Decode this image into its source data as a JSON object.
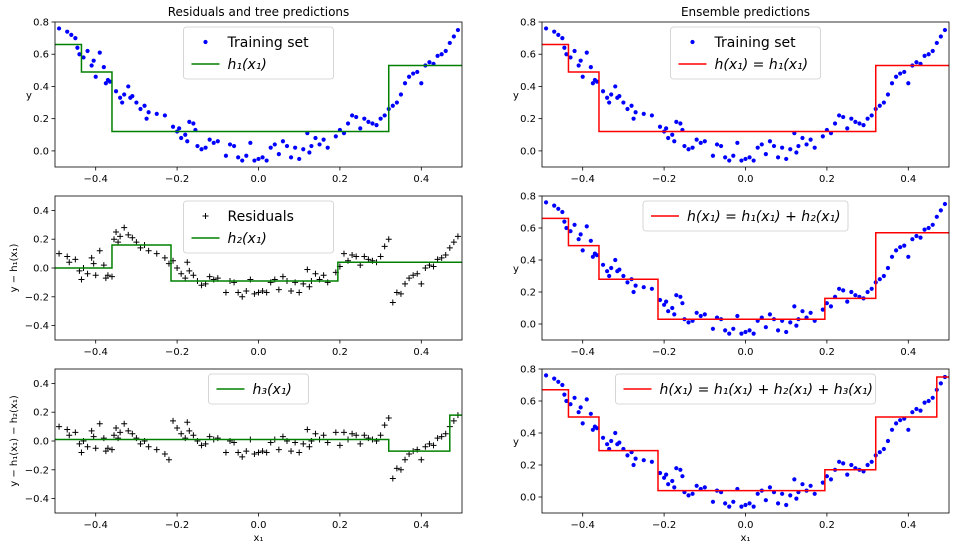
{
  "colors": {
    "train": "#0000ff",
    "tree": "#008000",
    "ensemble": "#ff0000",
    "residual": "#000000"
  },
  "chart_data": [
    {
      "id": "p1",
      "type": "scatter+step",
      "title": "Residuals and tree predictions",
      "xlabel": "",
      "ylabel": "y",
      "xlim": [
        -0.5,
        0.5
      ],
      "ylim": [
        -0.1,
        0.8
      ],
      "xticks": [
        -0.4,
        -0.2,
        0.0,
        0.2,
        0.4
      ],
      "yticks": [
        0.0,
        0.2,
        0.4,
        0.6,
        0.8
      ],
      "points_series": "training",
      "step": {
        "name": "h1",
        "thresholds": [
          -0.435,
          -0.36,
          0.32
        ],
        "values": [
          0.66,
          0.49,
          0.12,
          0.53
        ]
      },
      "line_color": "tree",
      "legend": [
        "Training set",
        "h₁(x₁)"
      ],
      "legend_loc": "upper center"
    },
    {
      "id": "p2",
      "type": "scatter+step",
      "title": "Ensemble predictions",
      "xlabel": "",
      "ylabel": "y",
      "xlim": [
        -0.5,
        0.5
      ],
      "ylim": [
        -0.1,
        0.8
      ],
      "xticks": [
        -0.4,
        -0.2,
        0.0,
        0.2,
        0.4
      ],
      "yticks": [
        0.0,
        0.2,
        0.4,
        0.6,
        0.8
      ],
      "points_series": "training",
      "step": {
        "name": "h(x1)=h1(x1)",
        "thresholds": [
          -0.435,
          -0.36,
          0.32
        ],
        "values": [
          0.66,
          0.49,
          0.12,
          0.53
        ]
      },
      "line_color": "ensemble",
      "legend": [
        "Training set",
        "h(x₁) = h₁(x₁)"
      ],
      "legend_loc": "upper center"
    },
    {
      "id": "p3",
      "type": "scatter+step",
      "title": "",
      "xlabel": "",
      "ylabel": "y − h₁(x₁)",
      "xlim": [
        -0.5,
        0.5
      ],
      "ylim": [
        -0.5,
        0.5
      ],
      "xticks": [
        -0.4,
        -0.2,
        0.0,
        0.2,
        0.4
      ],
      "yticks": [
        -0.4,
        -0.2,
        0.0,
        0.2,
        0.4
      ],
      "points_series": "residuals1",
      "step": {
        "name": "h2",
        "thresholds": [
          -0.36,
          -0.215,
          0.195
        ],
        "values": [
          0.0,
          0.16,
          -0.09,
          0.04
        ]
      },
      "line_color": "tree",
      "legend": [
        "Residuals",
        "h₂(x₁)"
      ],
      "legend_loc": "upper center"
    },
    {
      "id": "p4",
      "type": "scatter+step",
      "title": "",
      "xlabel": "",
      "ylabel": "y",
      "xlim": [
        -0.5,
        0.5
      ],
      "ylim": [
        -0.1,
        0.8
      ],
      "xticks": [
        -0.4,
        -0.2,
        0.0,
        0.2,
        0.4
      ],
      "yticks": [
        0.0,
        0.2,
        0.4,
        0.6,
        0.8
      ],
      "points_series": "training",
      "step": {
        "name": "h(x1)=h1(x1)+h2(x1)",
        "thresholds": [
          -0.435,
          -0.36,
          -0.215,
          0.195,
          0.32
        ],
        "values": [
          0.66,
          0.49,
          0.28,
          0.03,
          0.16,
          0.57
        ]
      },
      "line_color": "ensemble",
      "legend": [
        "h(x₁) = h₁(x₁) + h₂(x₁)"
      ],
      "legend_loc": "upper center"
    },
    {
      "id": "p5",
      "type": "scatter+step",
      "title": "",
      "xlabel": "x₁",
      "ylabel": "y − h₁(x₁) − h₂(x₁)",
      "xlim": [
        -0.5,
        0.5
      ],
      "ylim": [
        -0.5,
        0.5
      ],
      "xticks": [
        -0.4,
        -0.2,
        0.0,
        0.2,
        0.4
      ],
      "yticks": [
        -0.4,
        -0.2,
        0.0,
        0.2,
        0.4
      ],
      "points_series": "residuals2",
      "step": {
        "name": "h3",
        "thresholds": [
          0.32,
          0.47
        ],
        "values": [
          0.01,
          -0.07,
          0.18
        ]
      },
      "line_color": "tree",
      "legend": [
        "h₃(x₁)"
      ],
      "legend_loc": "upper center"
    },
    {
      "id": "p6",
      "type": "scatter+step",
      "title": "",
      "xlabel": "x₁",
      "ylabel": "y",
      "xlim": [
        -0.5,
        0.5
      ],
      "ylim": [
        -0.1,
        0.8
      ],
      "xticks": [
        -0.4,
        -0.2,
        0.0,
        0.2,
        0.4
      ],
      "yticks": [
        0.0,
        0.2,
        0.4,
        0.6,
        0.8
      ],
      "points_series": "training",
      "step": {
        "name": "h(x1)=h1(x1)+h2(x1)+h3(x1)",
        "thresholds": [
          -0.435,
          -0.36,
          -0.215,
          0.195,
          0.32,
          0.47
        ],
        "values": [
          0.67,
          0.5,
          0.29,
          0.04,
          0.17,
          0.5,
          0.75
        ]
      },
      "line_color": "ensemble",
      "legend": [
        "h(x₁) = h₁(x₁) + h₂(x₁) + h₃(x₁)"
      ],
      "legend_loc": "upper center"
    }
  ],
  "scatter": {
    "training": [
      [
        -0.49,
        0.76
      ],
      [
        -0.47,
        0.74
      ],
      [
        -0.46,
        0.72
      ],
      [
        -0.45,
        0.7
      ],
      [
        -0.445,
        0.64
      ],
      [
        -0.44,
        0.6
      ],
      [
        -0.43,
        0.58
      ],
      [
        -0.42,
        0.62
      ],
      [
        -0.41,
        0.53
      ],
      [
        -0.405,
        0.56
      ],
      [
        -0.4,
        0.46
      ],
      [
        -0.39,
        0.61
      ],
      [
        -0.38,
        0.52
      ],
      [
        -0.375,
        0.42
      ],
      [
        -0.37,
        0.44
      ],
      [
        -0.365,
        0.43
      ],
      [
        -0.35,
        0.37
      ],
      [
        -0.34,
        0.33
      ],
      [
        -0.335,
        0.3
      ],
      [
        -0.33,
        0.35
      ],
      [
        -0.32,
        0.4
      ],
      [
        -0.315,
        0.33
      ],
      [
        -0.31,
        0.34
      ],
      [
        -0.3,
        0.3
      ],
      [
        -0.29,
        0.26
      ],
      [
        -0.28,
        0.28
      ],
      [
        -0.275,
        0.2
      ],
      [
        -0.27,
        0.24
      ],
      [
        -0.25,
        0.23
      ],
      [
        -0.23,
        0.22
      ],
      [
        -0.21,
        0.15
      ],
      [
        -0.2,
        0.12
      ],
      [
        -0.195,
        0.14
      ],
      [
        -0.19,
        0.08
      ],
      [
        -0.18,
        0.1
      ],
      [
        -0.175,
        0.06
      ],
      [
        -0.17,
        0.18
      ],
      [
        -0.16,
        0.17
      ],
      [
        -0.155,
        0.13
      ],
      [
        -0.15,
        0.03
      ],
      [
        -0.14,
        0.01
      ],
      [
        -0.13,
        0.02
      ],
      [
        -0.12,
        0.07
      ],
      [
        -0.11,
        0.05
      ],
      [
        -0.1,
        0.06
      ],
      [
        -0.08,
        -0.03
      ],
      [
        -0.07,
        0.04
      ],
      [
        -0.06,
        0.03
      ],
      [
        -0.05,
        -0.04
      ],
      [
        -0.04,
        -0.06
      ],
      [
        -0.03,
        -0.03
      ],
      [
        -0.02,
        0.05
      ],
      [
        -0.01,
        -0.06
      ],
      [
        0.0,
        -0.05
      ],
      [
        0.01,
        -0.04
      ],
      [
        0.02,
        -0.06
      ],
      [
        0.03,
        0.02
      ],
      [
        0.04,
        0.04
      ],
      [
        0.05,
        -0.02
      ],
      [
        0.06,
        0.06
      ],
      [
        0.07,
        0.03
      ],
      [
        0.08,
        -0.04
      ],
      [
        0.09,
        0.02
      ],
      [
        0.1,
        -0.05
      ],
      [
        0.11,
        0.01
      ],
      [
        0.12,
        0.11
      ],
      [
        0.125,
        -0.01
      ],
      [
        0.13,
        0.03
      ],
      [
        0.14,
        0.08
      ],
      [
        0.15,
        0.04
      ],
      [
        0.16,
        0.07
      ],
      [
        0.17,
        0.02
      ],
      [
        0.19,
        0.09
      ],
      [
        0.2,
        0.13
      ],
      [
        0.21,
        0.11
      ],
      [
        0.22,
        0.17
      ],
      [
        0.23,
        0.22
      ],
      [
        0.24,
        0.21
      ],
      [
        0.25,
        0.14
      ],
      [
        0.26,
        0.2
      ],
      [
        0.27,
        0.18
      ],
      [
        0.28,
        0.17
      ],
      [
        0.29,
        0.16
      ],
      [
        0.3,
        0.2
      ],
      [
        0.31,
        0.22
      ],
      [
        0.32,
        0.26
      ],
      [
        0.33,
        0.28
      ],
      [
        0.34,
        0.3
      ],
      [
        0.35,
        0.35
      ],
      [
        0.36,
        0.42
      ],
      [
        0.37,
        0.46
      ],
      [
        0.38,
        0.48
      ],
      [
        0.39,
        0.49
      ],
      [
        0.4,
        0.42
      ],
      [
        0.41,
        0.53
      ],
      [
        0.42,
        0.55
      ],
      [
        0.43,
        0.54
      ],
      [
        0.44,
        0.59
      ],
      [
        0.45,
        0.6
      ],
      [
        0.46,
        0.62
      ],
      [
        0.47,
        0.67
      ],
      [
        0.48,
        0.71
      ],
      [
        0.49,
        0.75
      ]
    ],
    "residuals1": [
      [
        -0.49,
        0.1
      ],
      [
        -0.47,
        0.08
      ],
      [
        -0.465,
        0.04
      ],
      [
        -0.45,
        0.06
      ],
      [
        -0.44,
        -0.02
      ],
      [
        -0.435,
        -0.08
      ],
      [
        -0.43,
        0.0
      ],
      [
        -0.42,
        -0.04
      ],
      [
        -0.41,
        0.07
      ],
      [
        -0.405,
        0.03
      ],
      [
        -0.4,
        -0.05
      ],
      [
        -0.39,
        0.12
      ],
      [
        -0.38,
        0.02
      ],
      [
        -0.375,
        -0.07
      ],
      [
        -0.37,
        -0.05
      ],
      [
        -0.36,
        -0.06
      ],
      [
        -0.355,
        0.2
      ],
      [
        -0.35,
        0.25
      ],
      [
        -0.345,
        0.18
      ],
      [
        -0.34,
        0.22
      ],
      [
        -0.33,
        0.28
      ],
      [
        -0.32,
        0.23
      ],
      [
        -0.31,
        0.21
      ],
      [
        -0.3,
        0.18
      ],
      [
        -0.29,
        0.14
      ],
      [
        -0.28,
        0.16
      ],
      [
        -0.27,
        0.12
      ],
      [
        -0.25,
        0.1
      ],
      [
        -0.23,
        0.07
      ],
      [
        -0.22,
        0.03
      ],
      [
        -0.21,
        0.05
      ],
      [
        -0.2,
        0.0
      ],
      [
        -0.19,
        -0.04
      ],
      [
        -0.18,
        -0.07
      ],
      [
        -0.175,
        0.04
      ],
      [
        -0.17,
        -0.02
      ],
      [
        -0.16,
        -0.05
      ],
      [
        -0.15,
        -0.09
      ],
      [
        -0.14,
        -0.12
      ],
      [
        -0.13,
        -0.11
      ],
      [
        -0.12,
        -0.06
      ],
      [
        -0.11,
        -0.08
      ],
      [
        -0.1,
        -0.07
      ],
      [
        -0.08,
        -0.17
      ],
      [
        -0.07,
        -0.09
      ],
      [
        -0.06,
        -0.1
      ],
      [
        -0.05,
        -0.17
      ],
      [
        -0.04,
        -0.2
      ],
      [
        -0.03,
        -0.16
      ],
      [
        -0.02,
        -0.08
      ],
      [
        -0.01,
        -0.18
      ],
      [
        0.0,
        -0.17
      ],
      [
        0.01,
        -0.16
      ],
      [
        0.02,
        -0.17
      ],
      [
        0.03,
        -0.1
      ],
      [
        0.04,
        -0.08
      ],
      [
        0.05,
        -0.15
      ],
      [
        0.06,
        -0.06
      ],
      [
        0.07,
        -0.09
      ],
      [
        0.08,
        -0.16
      ],
      [
        0.09,
        -0.1
      ],
      [
        0.1,
        -0.17
      ],
      [
        0.11,
        -0.11
      ],
      [
        0.12,
        -0.01
      ],
      [
        0.125,
        -0.13
      ],
      [
        0.13,
        -0.09
      ],
      [
        0.14,
        -0.04
      ],
      [
        0.15,
        -0.08
      ],
      [
        0.16,
        -0.05
      ],
      [
        0.17,
        -0.1
      ],
      [
        0.19,
        -0.03
      ],
      [
        0.2,
        0.01
      ],
      [
        0.21,
        0.1
      ],
      [
        0.22,
        0.05
      ],
      [
        0.23,
        0.09
      ],
      [
        0.24,
        0.08
      ],
      [
        0.25,
        0.02
      ],
      [
        0.26,
        0.08
      ],
      [
        0.27,
        0.06
      ],
      [
        0.28,
        0.05
      ],
      [
        0.29,
        0.04
      ],
      [
        0.3,
        0.08
      ],
      [
        0.31,
        0.15
      ],
      [
        0.32,
        0.2
      ],
      [
        0.33,
        -0.24
      ],
      [
        0.34,
        -0.17
      ],
      [
        0.35,
        -0.18
      ],
      [
        0.36,
        -0.11
      ],
      [
        0.37,
        -0.07
      ],
      [
        0.38,
        -0.05
      ],
      [
        0.39,
        -0.04
      ],
      [
        0.4,
        -0.11
      ],
      [
        0.41,
        0.0
      ],
      [
        0.42,
        0.02
      ],
      [
        0.43,
        0.01
      ],
      [
        0.44,
        0.06
      ],
      [
        0.45,
        0.07
      ],
      [
        0.46,
        0.09
      ],
      [
        0.47,
        0.14
      ],
      [
        0.48,
        0.18
      ],
      [
        0.49,
        0.22
      ]
    ],
    "residuals2": [
      [
        -0.49,
        0.1
      ],
      [
        -0.47,
        0.08
      ],
      [
        -0.465,
        0.04
      ],
      [
        -0.45,
        0.06
      ],
      [
        -0.44,
        -0.02
      ],
      [
        -0.435,
        -0.08
      ],
      [
        -0.43,
        0.0
      ],
      [
        -0.42,
        -0.04
      ],
      [
        -0.41,
        0.07
      ],
      [
        -0.405,
        0.03
      ],
      [
        -0.4,
        -0.05
      ],
      [
        -0.39,
        0.12
      ],
      [
        -0.38,
        0.02
      ],
      [
        -0.375,
        -0.07
      ],
      [
        -0.37,
        -0.05
      ],
      [
        -0.36,
        -0.06
      ],
      [
        -0.355,
        0.04
      ],
      [
        -0.35,
        0.09
      ],
      [
        -0.345,
        0.02
      ],
      [
        -0.34,
        0.06
      ],
      [
        -0.33,
        0.12
      ],
      [
        -0.32,
        0.07
      ],
      [
        -0.31,
        0.05
      ],
      [
        -0.3,
        0.02
      ],
      [
        -0.29,
        -0.02
      ],
      [
        -0.28,
        0.0
      ],
      [
        -0.27,
        -0.04
      ],
      [
        -0.25,
        -0.06
      ],
      [
        -0.23,
        -0.09
      ],
      [
        -0.22,
        -0.13
      ],
      [
        -0.21,
        0.14
      ],
      [
        -0.2,
        0.09
      ],
      [
        -0.19,
        0.05
      ],
      [
        -0.18,
        0.02
      ],
      [
        -0.175,
        0.13
      ],
      [
        -0.17,
        0.07
      ],
      [
        -0.16,
        0.04
      ],
      [
        -0.15,
        0.0
      ],
      [
        -0.14,
        -0.03
      ],
      [
        -0.13,
        -0.02
      ],
      [
        -0.12,
        0.03
      ],
      [
        -0.11,
        0.01
      ],
      [
        -0.1,
        0.02
      ],
      [
        -0.08,
        -0.08
      ],
      [
        -0.07,
        0.0
      ],
      [
        -0.06,
        -0.01
      ],
      [
        -0.05,
        -0.08
      ],
      [
        -0.04,
        -0.11
      ],
      [
        -0.03,
        -0.07
      ],
      [
        -0.02,
        0.01
      ],
      [
        -0.01,
        -0.09
      ],
      [
        0.0,
        -0.08
      ],
      [
        0.01,
        -0.07
      ],
      [
        0.02,
        -0.08
      ],
      [
        0.03,
        -0.01
      ],
      [
        0.04,
        0.01
      ],
      [
        0.05,
        -0.06
      ],
      [
        0.06,
        0.03
      ],
      [
        0.07,
        0.0
      ],
      [
        0.08,
        -0.07
      ],
      [
        0.09,
        -0.01
      ],
      [
        0.1,
        -0.08
      ],
      [
        0.11,
        -0.02
      ],
      [
        0.12,
        0.08
      ],
      [
        0.125,
        -0.04
      ],
      [
        0.13,
        0.0
      ],
      [
        0.14,
        0.05
      ],
      [
        0.15,
        0.01
      ],
      [
        0.16,
        0.04
      ],
      [
        0.17,
        -0.01
      ],
      [
        0.19,
        0.06
      ],
      [
        0.2,
        -0.03
      ],
      [
        0.21,
        0.06
      ],
      [
        0.22,
        0.01
      ],
      [
        0.23,
        0.05
      ],
      [
        0.24,
        0.04
      ],
      [
        0.25,
        -0.02
      ],
      [
        0.26,
        0.04
      ],
      [
        0.27,
        0.02
      ],
      [
        0.28,
        0.01
      ],
      [
        0.29,
        0.0
      ],
      [
        0.3,
        0.04
      ],
      [
        0.31,
        0.11
      ],
      [
        0.32,
        0.16
      ],
      [
        0.33,
        -0.26
      ],
      [
        0.34,
        -0.19
      ],
      [
        0.35,
        -0.2
      ],
      [
        0.36,
        -0.13
      ],
      [
        0.37,
        -0.09
      ],
      [
        0.38,
        -0.07
      ],
      [
        0.39,
        -0.06
      ],
      [
        0.4,
        -0.13
      ],
      [
        0.41,
        -0.04
      ],
      [
        0.42,
        -0.02
      ],
      [
        0.43,
        -0.03
      ],
      [
        0.44,
        0.02
      ],
      [
        0.45,
        0.03
      ],
      [
        0.46,
        0.05
      ],
      [
        0.47,
        0.1
      ],
      [
        0.48,
        0.14
      ],
      [
        0.49,
        0.18
      ]
    ]
  }
}
